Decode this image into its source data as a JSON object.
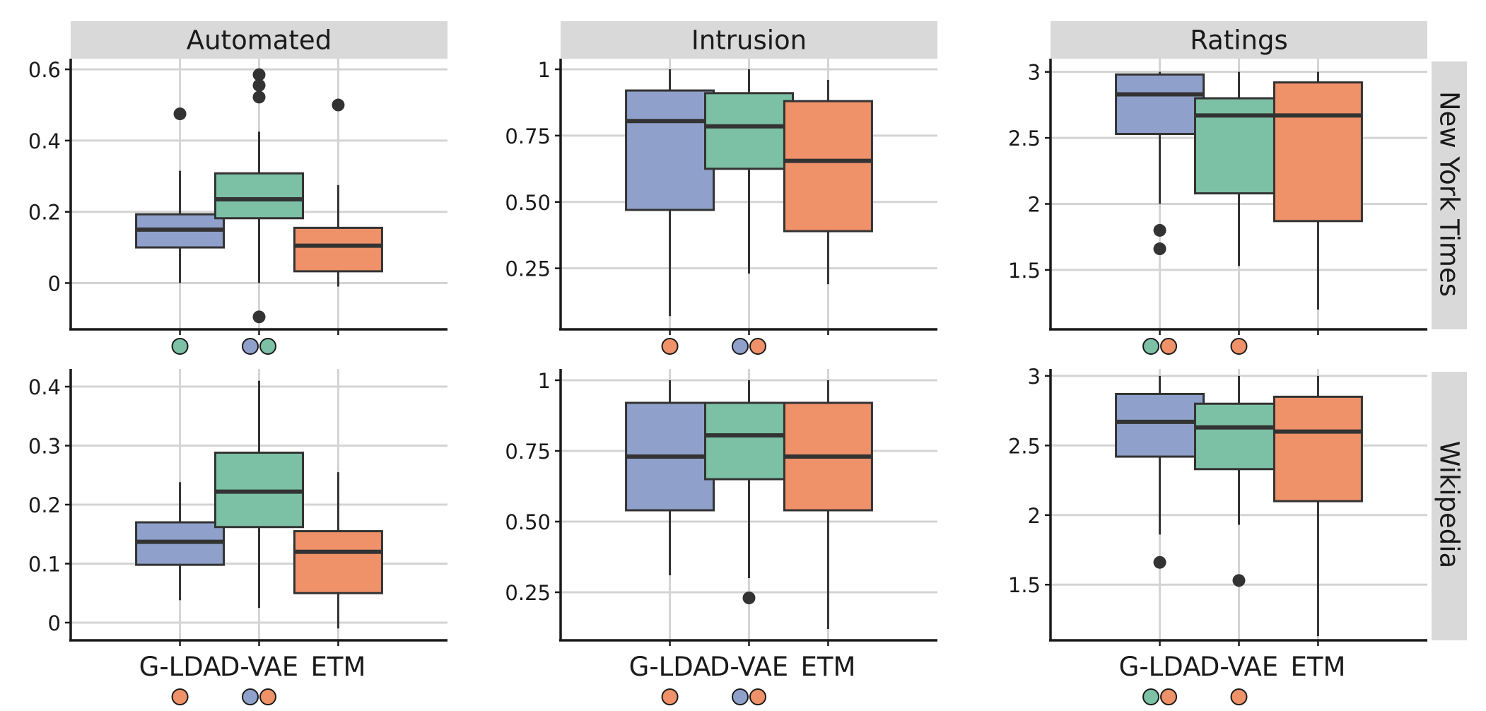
{
  "colors": {
    "G-LDA": "#8fa0cb",
    "D-VAE": "#7cc0a5",
    "ETM": "#ef9169",
    "strip": "#d9d9d9",
    "grid": "#d4d4d4",
    "ink": "#333333"
  },
  "chart_data": {
    "type": "boxplot",
    "layout": "faceted grid",
    "grid": true,
    "categories": [
      "G-LDA",
      "D-VAE",
      "ETM"
    ],
    "columns": [
      "Automated",
      "Intrusion",
      "Ratings"
    ],
    "rows": [
      "New York Times",
      "Wikipedia"
    ],
    "panels": [
      {
        "column": "Automated",
        "row": "New York Times",
        "ylim": [
          -0.13,
          0.63
        ],
        "yticks": [
          0,
          0.2,
          0.4,
          0.6
        ],
        "ytick_labels": [
          "0",
          "0.2",
          "0.4",
          "0.6"
        ],
        "boxes": [
          {
            "category": "G-LDA",
            "whisker_low": 0.0,
            "q1": 0.1,
            "median": 0.15,
            "q3": 0.193,
            "whisker_high": 0.315,
            "outliers": [
              0.475
            ]
          },
          {
            "category": "D-VAE",
            "whisker_low": 0.0,
            "q1": 0.182,
            "median": 0.235,
            "q3": 0.308,
            "whisker_high": 0.425,
            "outliers": [
              -0.095,
              0.522,
              0.555,
              0.585
            ]
          },
          {
            "category": "ETM",
            "whisker_low": -0.01,
            "q1": 0.033,
            "median": 0.105,
            "q3": 0.155,
            "whisker_high": 0.275,
            "outliers": [
              0.5
            ]
          }
        ],
        "significance": [
          [
            "D-VAE"
          ],
          [
            "G-LDA",
            "D-VAE"
          ],
          []
        ]
      },
      {
        "column": "Intrusion",
        "row": "New York Times",
        "ylim": [
          0.02,
          1.04
        ],
        "yticks": [
          0.25,
          0.5,
          0.75,
          1
        ],
        "ytick_labels": [
          "0.25",
          "0.50",
          "0.75",
          "1"
        ],
        "boxes": [
          {
            "category": "G-LDA",
            "whisker_low": 0.07,
            "q1": 0.47,
            "median": 0.805,
            "q3": 0.92,
            "whisker_high": 1.0,
            "outliers": []
          },
          {
            "category": "D-VAE",
            "whisker_low": 0.23,
            "q1": 0.625,
            "median": 0.785,
            "q3": 0.91,
            "whisker_high": 1.0,
            "outliers": []
          },
          {
            "category": "ETM",
            "whisker_low": 0.19,
            "q1": 0.39,
            "median": 0.655,
            "q3": 0.88,
            "whisker_high": 0.96,
            "outliers": []
          }
        ],
        "significance": [
          [
            "ETM"
          ],
          [
            "G-LDA",
            "ETM"
          ],
          []
        ]
      },
      {
        "column": "Ratings",
        "row": "New York Times",
        "ylim": [
          1.05,
          3.1
        ],
        "yticks": [
          1.5,
          2,
          2.5,
          3
        ],
        "ytick_labels": [
          "1.5",
          "2",
          "2.5",
          "3"
        ],
        "boxes": [
          {
            "category": "G-LDA",
            "whisker_low": 2.0,
            "q1": 2.53,
            "median": 2.83,
            "q3": 2.98,
            "whisker_high": 3.0,
            "outliers": [
              1.66,
              1.8
            ]
          },
          {
            "category": "D-VAE",
            "whisker_low": 1.53,
            "q1": 2.08,
            "median": 2.67,
            "q3": 2.8,
            "whisker_high": 3.0,
            "outliers": []
          },
          {
            "category": "ETM",
            "whisker_low": 1.2,
            "q1": 1.87,
            "median": 2.67,
            "q3": 2.92,
            "whisker_high": 3.0,
            "outliers": []
          }
        ],
        "significance": [
          [
            "D-VAE",
            "ETM"
          ],
          [
            "ETM"
          ],
          []
        ]
      },
      {
        "column": "Automated",
        "row": "Wikipedia",
        "ylim": [
          -0.03,
          0.43
        ],
        "yticks": [
          0,
          0.1,
          0.2,
          0.3,
          0.4
        ],
        "ytick_labels": [
          "0",
          "0.1",
          "0.2",
          "0.3",
          "0.4"
        ],
        "boxes": [
          {
            "category": "G-LDA",
            "whisker_low": 0.038,
            "q1": 0.098,
            "median": 0.137,
            "q3": 0.17,
            "whisker_high": 0.238,
            "outliers": []
          },
          {
            "category": "D-VAE",
            "whisker_low": 0.025,
            "q1": 0.162,
            "median": 0.222,
            "q3": 0.288,
            "whisker_high": 0.41,
            "outliers": []
          },
          {
            "category": "ETM",
            "whisker_low": -0.01,
            "q1": 0.05,
            "median": 0.12,
            "q3": 0.155,
            "whisker_high": 0.255,
            "outliers": []
          }
        ],
        "significance": [
          [
            "ETM"
          ],
          [
            "G-LDA",
            "ETM"
          ],
          []
        ]
      },
      {
        "column": "Intrusion",
        "row": "Wikipedia",
        "ylim": [
          0.08,
          1.04
        ],
        "yticks": [
          0.25,
          0.5,
          0.75,
          1
        ],
        "ytick_labels": [
          "0.25",
          "0.50",
          "0.75",
          "1"
        ],
        "boxes": [
          {
            "category": "G-LDA",
            "whisker_low": 0.31,
            "q1": 0.54,
            "median": 0.73,
            "q3": 0.92,
            "whisker_high": 1.0,
            "outliers": []
          },
          {
            "category": "D-VAE",
            "whisker_low": 0.3,
            "q1": 0.65,
            "median": 0.805,
            "q3": 0.92,
            "whisker_high": 1.0,
            "outliers": [
              0.23
            ]
          },
          {
            "category": "ETM",
            "whisker_low": 0.12,
            "q1": 0.54,
            "median": 0.73,
            "q3": 0.92,
            "whisker_high": 1.0,
            "outliers": []
          }
        ],
        "significance": [
          [
            "ETM"
          ],
          [
            "G-LDA",
            "ETM"
          ],
          []
        ]
      },
      {
        "column": "Ratings",
        "row": "Wikipedia",
        "ylim": [
          1.1,
          3.05
        ],
        "yticks": [
          1.5,
          2,
          2.5,
          3
        ],
        "ytick_labels": [
          "1.5",
          "2",
          "2.5",
          "3"
        ],
        "boxes": [
          {
            "category": "G-LDA",
            "whisker_low": 1.86,
            "q1": 2.42,
            "median": 2.67,
            "q3": 2.87,
            "whisker_high": 3.0,
            "outliers": [
              1.66
            ]
          },
          {
            "category": "D-VAE",
            "whisker_low": 1.93,
            "q1": 2.33,
            "median": 2.63,
            "q3": 2.8,
            "whisker_high": 3.0,
            "outliers": [
              1.53
            ]
          },
          {
            "category": "ETM",
            "whisker_low": 1.13,
            "q1": 2.1,
            "median": 2.6,
            "q3": 2.85,
            "whisker_high": 3.0,
            "outliers": []
          }
        ],
        "significance": [
          [
            "D-VAE",
            "ETM"
          ],
          [
            "ETM"
          ],
          []
        ]
      }
    ]
  }
}
